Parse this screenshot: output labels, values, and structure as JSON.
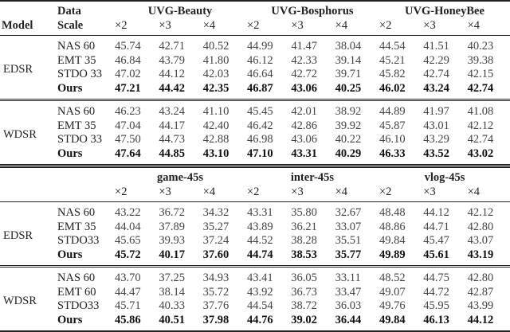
{
  "headers": {
    "model": "Model",
    "data": "Data",
    "scale": "Scale"
  },
  "scales": [
    "×2",
    "×3",
    "×4"
  ],
  "blocks": [
    {
      "datasets": [
        "UVG-Beauty",
        "UVG-Bosphorus",
        "UVG-HoneyBee"
      ],
      "show_row_headers": true,
      "groups": [
        {
          "model": "EDSR",
          "rows": [
            {
              "scale": "NAS 60",
              "values": [
                "45.74",
                "42.71",
                "40.52",
                "44.99",
                "41.47",
                "38.04",
                "44.54",
                "41.51",
                "40.23"
              ]
            },
            {
              "scale": "EMT 35",
              "values": [
                "46.84",
                "43.79",
                "41.80",
                "46.12",
                "42.33",
                "39.14",
                "45.21",
                "42.29",
                "39.38"
              ]
            },
            {
              "scale": "STDO 33",
              "values": [
                "47.02",
                "44.12",
                "42.03",
                "46.64",
                "42.72",
                "39.71",
                "45.82",
                "42.74",
                "42.15"
              ]
            },
            {
              "scale": "Ours",
              "bold": true,
              "values": [
                "47.21",
                "44.42",
                "42.35",
                "46.87",
                "43.06",
                "40.25",
                "46.02",
                "43.24",
                "42.74"
              ]
            }
          ]
        },
        {
          "model": "WDSR",
          "rows": [
            {
              "scale": "NAS 60",
              "values": [
                "46.23",
                "43.24",
                "41.10",
                "45.45",
                "42.01",
                "38.92",
                "44.89",
                "41.97",
                "41.08"
              ]
            },
            {
              "scale": "EMT 35",
              "values": [
                "47.04",
                "44.17",
                "42.40",
                "46.42",
                "42.86",
                "39.92",
                "45.87",
                "43.01",
                "42.12"
              ]
            },
            {
              "scale": "STDO 33",
              "values": [
                "47.50",
                "44.73",
                "42.88",
                "46.98",
                "43.06",
                "40.22",
                "46.10",
                "43.29",
                "42.74"
              ]
            },
            {
              "scale": "Ours",
              "bold": true,
              "values": [
                "47.64",
                "44.85",
                "43.10",
                "47.10",
                "43.31",
                "40.29",
                "46.33",
                "43.52",
                "43.02"
              ]
            }
          ]
        }
      ]
    },
    {
      "datasets": [
        "game-45s",
        "inter-45s",
        "vlog-45s"
      ],
      "show_row_headers": false,
      "groups": [
        {
          "model": "EDSR",
          "rows": [
            {
              "scale": "NAS 60",
              "values": [
                "43.22",
                "36.72",
                "34.32",
                "43.31",
                "35.80",
                "32.67",
                "48.48",
                "44.12",
                "42.12"
              ]
            },
            {
              "scale": "EMT 35",
              "values": [
                "44.04",
                "37.89",
                "35.27",
                "43.89",
                "36.21",
                "33.07",
                "48.86",
                "44.71",
                "42.80"
              ]
            },
            {
              "scale": "STDO33",
              "values": [
                "45.65",
                "39.93",
                "37.24",
                "44.52",
                "38.28",
                "35.51",
                "49.84",
                "45.47",
                "43.07"
              ]
            },
            {
              "scale": "Ours",
              "bold": true,
              "values": [
                "45.72",
                "40.17",
                "37.60",
                "44.74",
                "38.53",
                "35.77",
                "49.89",
                "45.61",
                "43.19"
              ]
            }
          ]
        },
        {
          "model": "WDSR",
          "rows": [
            {
              "scale": "NAS 60",
              "values": [
                "43.70",
                "37.25",
                "34.93",
                "43.41",
                "36.05",
                "33.11",
                "48.52",
                "44.75",
                "42.80"
              ]
            },
            {
              "scale": "EMT 60",
              "values": [
                "44.47",
                "38.14",
                "35.72",
                "43.92",
                "36.73",
                "33.47",
                "49.07",
                "44.72",
                "42.87"
              ]
            },
            {
              "scale": "STDO33",
              "values": [
                "45.71",
                "40.33",
                "37.76",
                "44.54",
                "38.72",
                "36.03",
                "49.76",
                "45.95",
                "43.99"
              ]
            },
            {
              "scale": "Ours",
              "bold": true,
              "values": [
                "45.86",
                "40.51",
                "37.98",
                "44.76",
                "39.02",
                "36.44",
                "49.84",
                "46.13",
                "44.12"
              ]
            }
          ]
        }
      ]
    }
  ]
}
